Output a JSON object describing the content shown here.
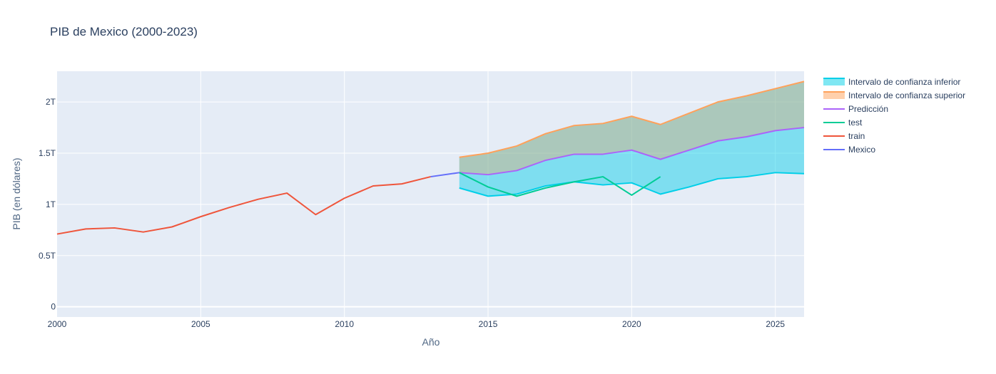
{
  "chart_data": {
    "type": "line",
    "title": "PIB de Mexico (2000-2023)",
    "xlabel": "Año",
    "ylabel": "PIB (en dólares)",
    "xlim": [
      2000,
      2026
    ],
    "ylim": [
      -0.1,
      2.3
    ],
    "xticks": [
      2000,
      2005,
      2010,
      2015,
      2020,
      2025
    ],
    "yticks": [
      0,
      0.5,
      1,
      1.5,
      2
    ],
    "ytick_labels": [
      "0",
      "0.5T",
      "1T",
      "1.5T",
      "2T"
    ],
    "grid": true,
    "legend_position": "right",
    "series": [
      {
        "name": "Intervalo de confianza inferior",
        "color": "#00cfe8",
        "x": [
          2014,
          2015,
          2016,
          2017,
          2018,
          2019,
          2020,
          2021,
          2022,
          2023,
          2024,
          2025,
          2026
        ],
        "values": [
          1.16,
          1.08,
          1.1,
          1.18,
          1.22,
          1.19,
          1.21,
          1.1,
          1.17,
          1.25,
          1.27,
          1.31,
          1.3
        ]
      },
      {
        "name": "Intervalo de confianza superior",
        "color": "#ffa15a",
        "x": [
          2014,
          2015,
          2016,
          2017,
          2018,
          2019,
          2020,
          2021,
          2022,
          2023,
          2024,
          2025,
          2026
        ],
        "values": [
          1.46,
          1.5,
          1.57,
          1.69,
          1.77,
          1.79,
          1.86,
          1.78,
          1.89,
          2.0,
          2.06,
          2.13,
          2.2
        ]
      },
      {
        "name": "Predicción",
        "color": "#ab63fa",
        "x": [
          2014,
          2015,
          2016,
          2017,
          2018,
          2019,
          2020,
          2021,
          2022,
          2023,
          2024,
          2025,
          2026
        ],
        "values": [
          1.31,
          1.29,
          1.33,
          1.43,
          1.49,
          1.49,
          1.53,
          1.44,
          1.53,
          1.62,
          1.66,
          1.72,
          1.75
        ]
      },
      {
        "name": "test",
        "color": "#00cc96",
        "x": [
          2014,
          2015,
          2016,
          2017,
          2018,
          2019,
          2020,
          2021
        ],
        "values": [
          1.31,
          1.17,
          1.08,
          1.16,
          1.22,
          1.27,
          1.09,
          1.27
        ]
      },
      {
        "name": "train",
        "color": "#ef553b",
        "x": [
          2000,
          2001,
          2002,
          2003,
          2004,
          2005,
          2006,
          2007,
          2008,
          2009,
          2010,
          2011,
          2012,
          2013
        ],
        "values": [
          0.71,
          0.76,
          0.77,
          0.73,
          0.78,
          0.88,
          0.97,
          1.05,
          1.11,
          0.9,
          1.06,
          1.18,
          1.2,
          1.27
        ]
      },
      {
        "name": "Mexico",
        "color": "#636efa",
        "x": [
          2013,
          2014
        ],
        "values": [
          1.27,
          1.31
        ]
      }
    ]
  }
}
